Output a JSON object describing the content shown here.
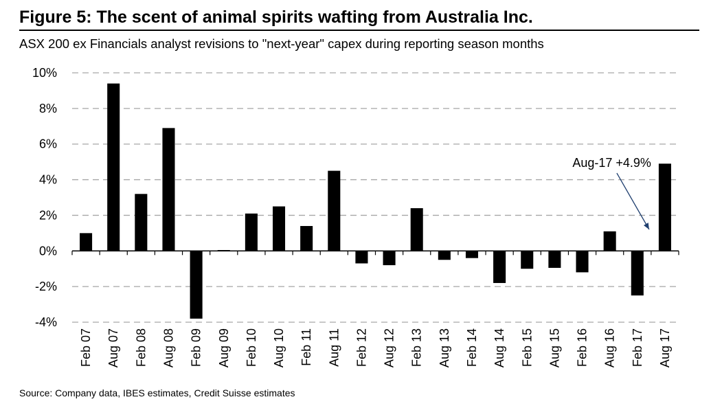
{
  "figure": {
    "title": "Figure 5: The scent of animal spirits wafting from Australia Inc.",
    "subtitle": "ASX 200 ex Financials analyst revisions to \"next-year\" capex during reporting season months",
    "source": "Source: Company data, IBES estimates, Credit Suisse estimates"
  },
  "chart_data": {
    "type": "bar",
    "title": "Figure 5: The scent of animal spirits wafting from Australia Inc.",
    "subtitle": "ASX 200 ex Financials analyst revisions to \"next-year\" capex during reporting season months",
    "xlabel": "",
    "ylabel": "",
    "categories": [
      "Feb 07",
      "Aug 07",
      "Feb 08",
      "Aug 08",
      "Feb 09",
      "Aug 09",
      "Feb 10",
      "Aug 10",
      "Feb 11",
      "Aug 11",
      "Feb 12",
      "Aug 12",
      "Feb 13",
      "Aug 13",
      "Feb 14",
      "Aug 14",
      "Feb 15",
      "Aug 15",
      "Feb 16",
      "Aug 16",
      "Feb 17",
      "Aug 17"
    ],
    "values": [
      1.0,
      9.4,
      3.2,
      6.9,
      -3.8,
      0.05,
      2.1,
      2.5,
      1.4,
      4.5,
      -0.7,
      -0.8,
      2.4,
      -0.5,
      -0.4,
      -1.8,
      -1.0,
      -0.95,
      -1.2,
      1.1,
      -2.5,
      4.9
    ],
    "ylim": [
      -4,
      10
    ],
    "yticks": [
      -4,
      -2,
      0,
      2,
      4,
      6,
      8,
      10
    ],
    "ytick_labels": [
      "-4%",
      "-2%",
      "0%",
      "2%",
      "4%",
      "6%",
      "8%",
      "10%"
    ],
    "grid": "horizontal dashed",
    "bar_color": "#000000",
    "grid_color": "#a6a6a6",
    "annotation": {
      "text": "Aug-17 +4.9%",
      "target_category": "Aug 17"
    }
  }
}
